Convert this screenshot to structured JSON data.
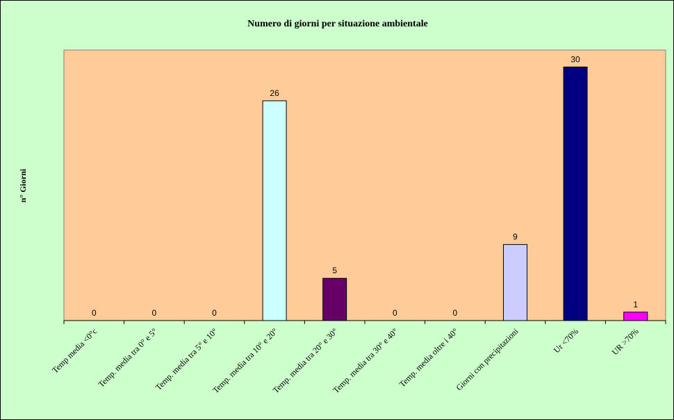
{
  "chart_data": {
    "type": "bar",
    "title": "Numero di giorni per situazione ambientale",
    "ylabel": "n° Giorni",
    "xlabel": "",
    "ylim": [
      0,
      32
    ],
    "grid": false,
    "legend": "none",
    "plot_background": "#ffcc99",
    "figure_background": "#ccffcc",
    "categories": [
      "Temp media <0°c",
      "Temp. media tra 0° e 5°",
      "Temp. media tra 5° e 10°",
      "Temp. media tra 10° e 20°",
      "Temp. media tra 20° e 30°",
      "Temp. media tra 30° e 40°",
      "Temp. media oltre i 40°",
      "Giorni con precipitazioni",
      "Ur <70%",
      "UR >70%"
    ],
    "values": [
      0,
      0,
      0,
      26,
      5,
      0,
      0,
      9,
      30,
      1
    ],
    "value_labels": [
      "0",
      "0",
      "0",
      "26",
      "5",
      "0",
      "0",
      "9",
      "30",
      "1"
    ],
    "bar_colors": [
      "#ccffff",
      "#ccffff",
      "#ccffff",
      "#ccffff",
      "#660066",
      "#ccffff",
      "#ccffff",
      "#ccccff",
      "#000080",
      "#ff00ff"
    ]
  }
}
